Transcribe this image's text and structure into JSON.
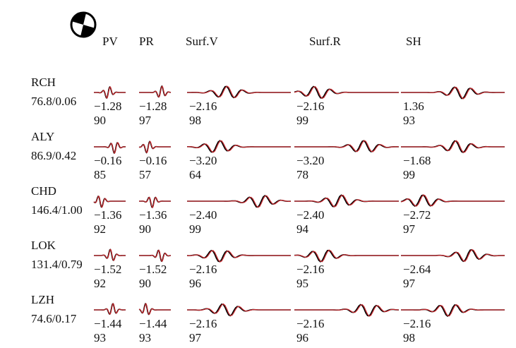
{
  "headers": [
    "PV",
    "PR",
    "Surf.V",
    "Surf.R",
    "SH"
  ],
  "stations": [
    {
      "name": "RCH",
      "info": "76.8/0.06",
      "cells": [
        {
          "shift": "−1.28",
          "cc": "90"
        },
        {
          "shift": "−1.28",
          "cc": "97"
        },
        {
          "shift": "−2.16",
          "cc": "98"
        },
        {
          "shift": "−2.16",
          "cc": "99"
        },
        {
          "shift": "1.36",
          "cc": "93"
        }
      ]
    },
    {
      "name": "ALY",
      "info": "86.9/0.42",
      "cells": [
        {
          "shift": "−0.16",
          "cc": "85"
        },
        {
          "shift": "−0.16",
          "cc": "57"
        },
        {
          "shift": "−3.20",
          "cc": "64"
        },
        {
          "shift": "−3.20",
          "cc": "78"
        },
        {
          "shift": "−1.68",
          "cc": "99"
        }
      ]
    },
    {
      "name": "CHD",
      "info": "146.4/1.00",
      "cells": [
        {
          "shift": "−1.36",
          "cc": "92"
        },
        {
          "shift": "−1.36",
          "cc": "90"
        },
        {
          "shift": "−2.40",
          "cc": "99"
        },
        {
          "shift": "−2.40",
          "cc": "94"
        },
        {
          "shift": "−2.72",
          "cc": "97"
        }
      ]
    },
    {
      "name": "LOK",
      "info": "131.4/0.79",
      "cells": [
        {
          "shift": "−1.52",
          "cc": "92"
        },
        {
          "shift": "−1.52",
          "cc": "90"
        },
        {
          "shift": "−2.16",
          "cc": "96"
        },
        {
          "shift": "−2.16",
          "cc": "95"
        },
        {
          "shift": "−2.64",
          "cc": "97"
        }
      ]
    },
    {
      "name": "LZH",
      "info": "74.6/0.17",
      "cells": [
        {
          "shift": "−1.44",
          "cc": "93"
        },
        {
          "shift": "−1.44",
          "cc": "93"
        },
        {
          "shift": "−2.16",
          "cc": "97"
        },
        {
          "shift": "−2.16",
          "cc": "96"
        },
        {
          "shift": "−2.16",
          "cc": "98"
        }
      ]
    }
  ]
}
